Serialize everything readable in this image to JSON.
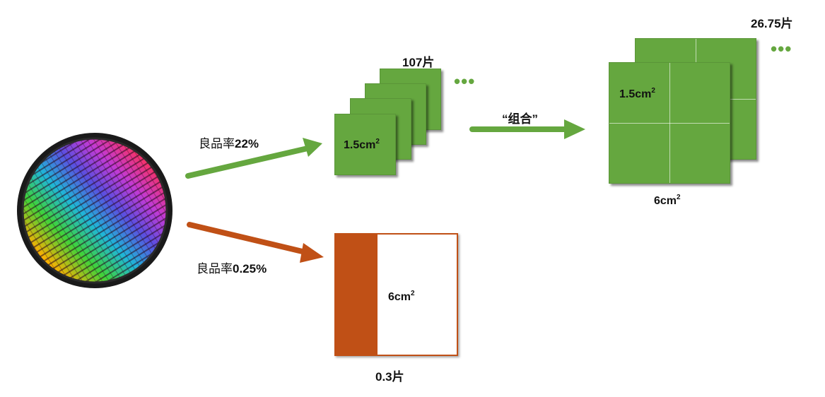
{
  "wafer": {
    "icon": "silicon-wafer-icon"
  },
  "top_path": {
    "yield_label": "良品率",
    "yield_value": "22%",
    "stack_count": "107片",
    "die_size_base": "1.5cm",
    "die_size_exp": "2",
    "ellipsis": "•••",
    "combine_label": "“组合”",
    "combined_count": "26.75片",
    "combined_die_base": "1.5cm",
    "combined_die_exp": "2",
    "combined_size_base": "6cm",
    "combined_size_exp": "2",
    "combined_ellipsis": "•••",
    "color": "#65a73f"
  },
  "bottom_path": {
    "yield_label": "良品率",
    "yield_value": "0.25%",
    "die_size_base": "6cm",
    "die_size_exp": "2",
    "count": "0.3片",
    "color": "#c05016"
  }
}
